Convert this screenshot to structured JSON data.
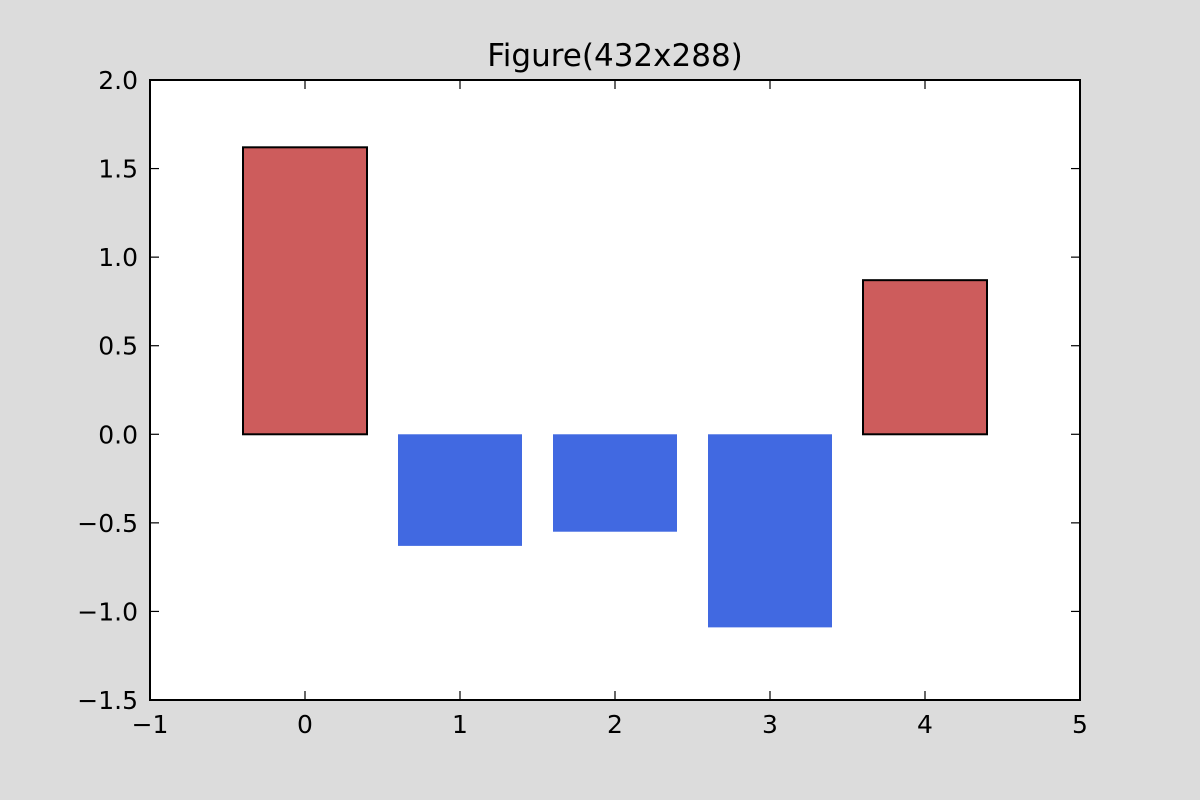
{
  "chart_data": {
    "type": "bar",
    "title": "Figure(432x288)",
    "xlabel": "",
    "ylabel": "",
    "x": [
      0,
      1,
      2,
      3,
      4
    ],
    "values": [
      1.62,
      -0.63,
      -0.55,
      -1.09,
      0.87
    ],
    "bar_colors": [
      "#cd5c5c",
      "#4169e1",
      "#4169e1",
      "#4169e1",
      "#cd5c5c"
    ],
    "bar_outlined": [
      true,
      false,
      false,
      false,
      true
    ],
    "xlim": [
      -1,
      5
    ],
    "ylim": [
      -1.5,
      2.0
    ],
    "xticks": [
      -1,
      0,
      1,
      2,
      3,
      4,
      5
    ],
    "yticks": [
      -1.5,
      -1.0,
      -0.5,
      0.0,
      0.5,
      1.0,
      1.5,
      2.0
    ],
    "xtick_labels": [
      "−1",
      "0",
      "1",
      "2",
      "3",
      "4",
      "5"
    ],
    "ytick_labels": [
      "−1.5",
      "−1.0",
      "−0.5",
      "0.0",
      "0.5",
      "1.0",
      "1.5",
      "2.0"
    ],
    "grid": false,
    "legend": "none",
    "background_color": "#dcdcdc",
    "plot_background_color": "#ffffff"
  }
}
